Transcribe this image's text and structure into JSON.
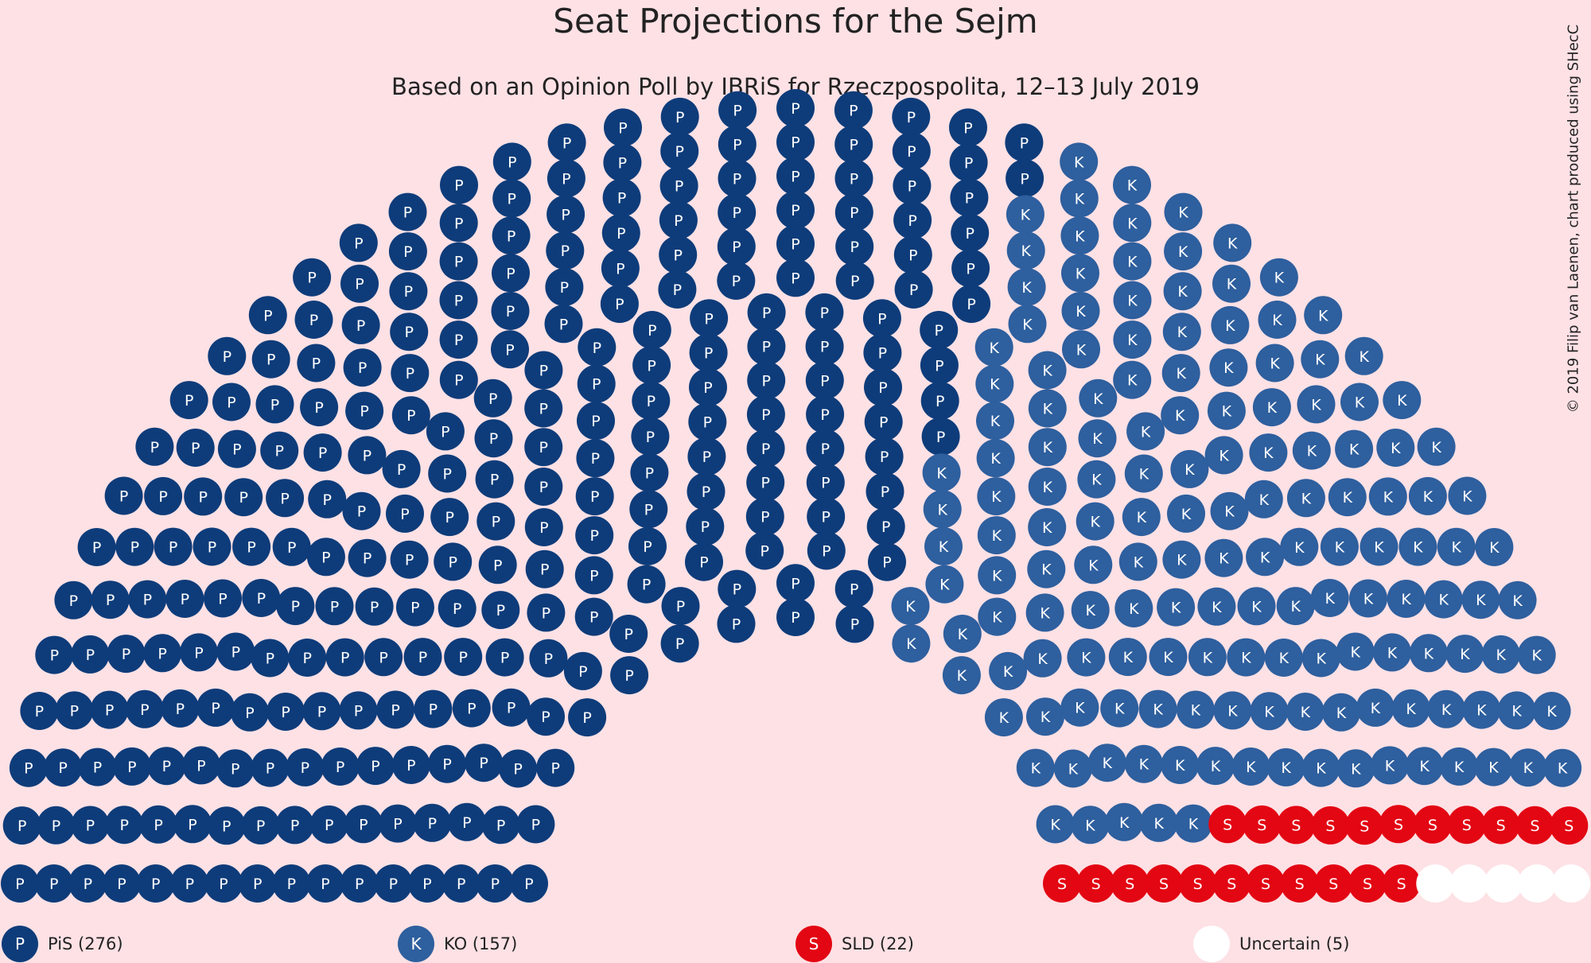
{
  "chart_data": {
    "type": "parliament",
    "title": "Seat Projections for the Sejm",
    "subtitle": "Based on an Opinion Poll by IBRiS for Rzeczpospolita, 12–13 July 2019",
    "credit": "© 2019 Filip van Laenen, chart produced using SHecC",
    "total_seats": 460,
    "series": [
      {
        "name": "PiS",
        "letter": "P",
        "seats": 276,
        "color": "#0e3c7a",
        "legend": "PiS (276)"
      },
      {
        "name": "KO",
        "letter": "K",
        "seats": 157,
        "color": "#2e5f9e",
        "legend": "KO (157)"
      },
      {
        "name": "SLD",
        "letter": "S",
        "seats": 22,
        "color": "#e30613",
        "legend": "SLD (22)"
      },
      {
        "name": "Uncertain",
        "letter": "",
        "seats": 5,
        "color": "#ffffff",
        "legend": "Uncertain (5)"
      }
    ]
  }
}
